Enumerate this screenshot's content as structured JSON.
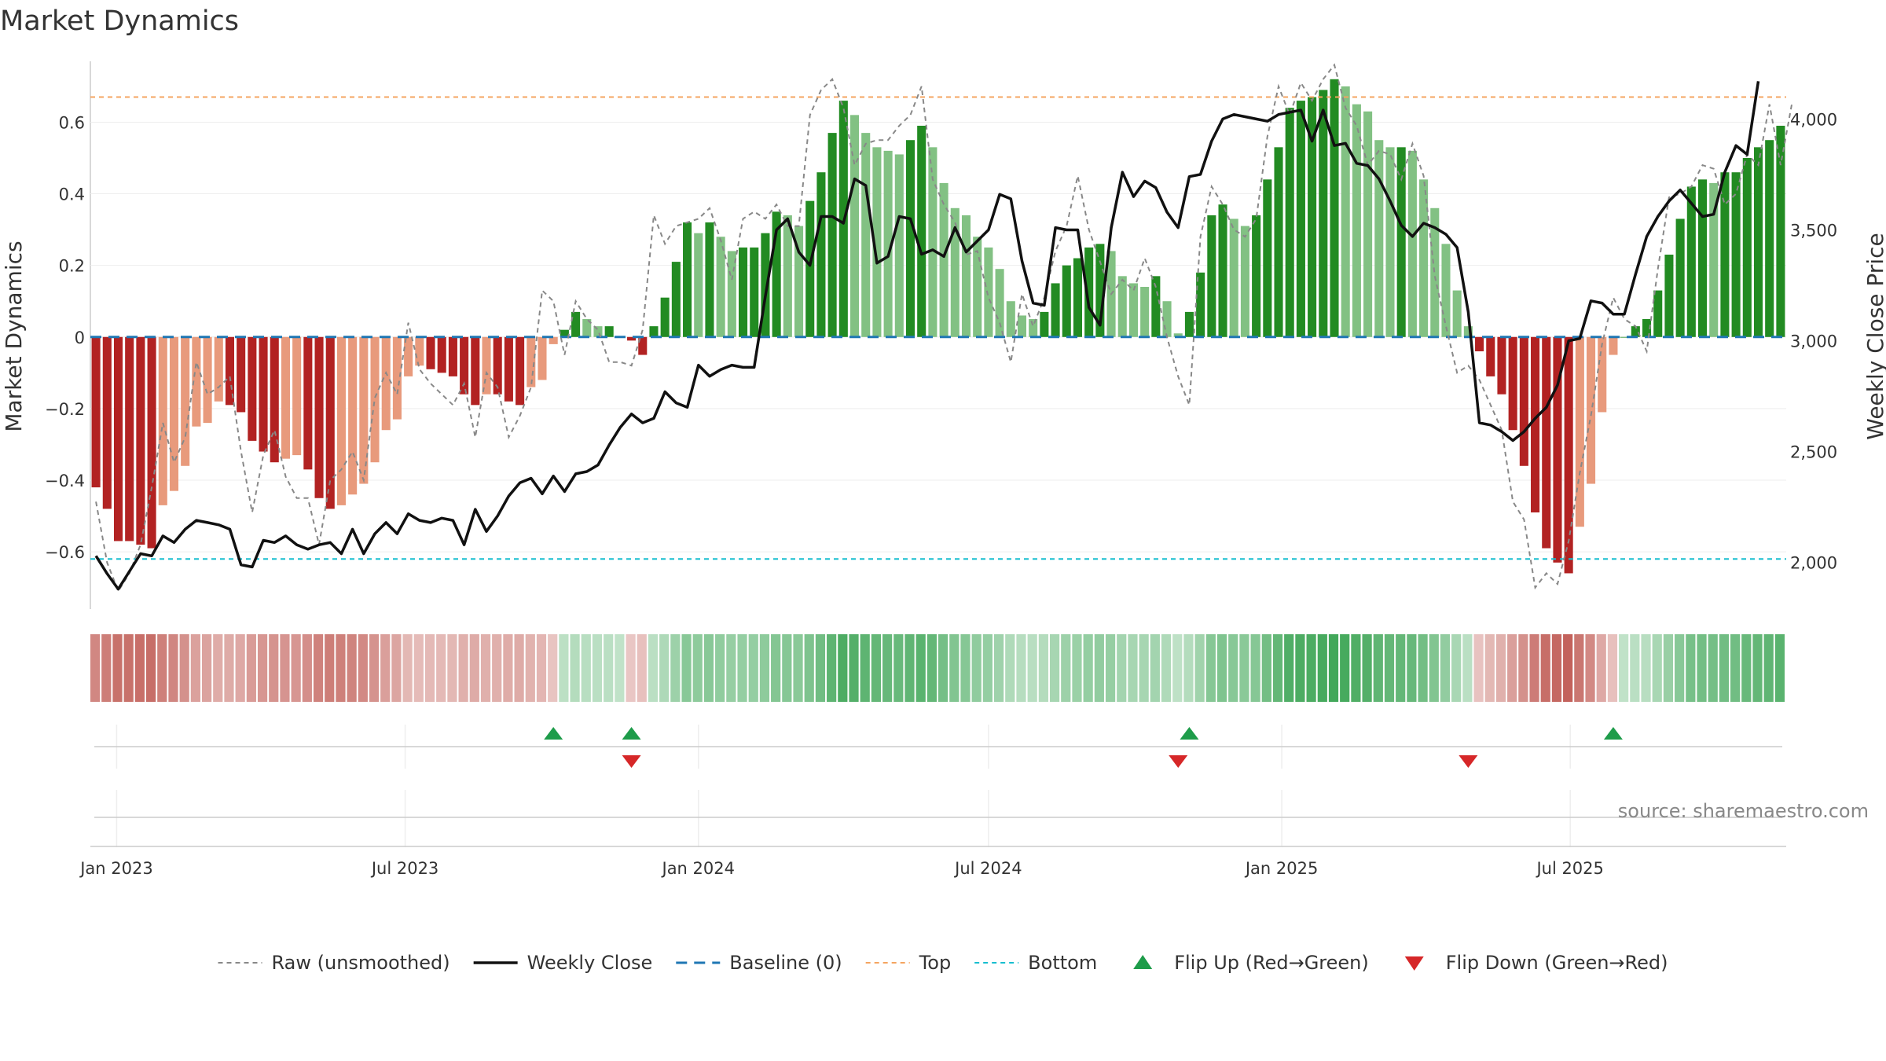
{
  "chart_data": {
    "type": "bar",
    "title": "Market Dynamics",
    "ylabel": "Market Dynamics",
    "y2label": "Weekly Close Price",
    "source": "source: sharemaestro.com",
    "ylim": [
      -0.76,
      0.77
    ],
    "y2lim": [
      1790,
      4260
    ],
    "start_date": "2022-12-19",
    "y_ticks": [
      {
        "v": 0.6,
        "label": "0.6"
      },
      {
        "v": 0.4,
        "label": "0.4"
      },
      {
        "v": 0.2,
        "label": "0.2"
      },
      {
        "v": 0,
        "label": "0"
      },
      {
        "v": -0.2,
        "label": "−0.2"
      },
      {
        "v": -0.4,
        "label": "−0.4"
      },
      {
        "v": -0.6,
        "label": "−0.6"
      }
    ],
    "y2_ticks": [
      {
        "v": 4000,
        "label": "4,000"
      },
      {
        "v": 3500,
        "label": "3,500"
      },
      {
        "v": 3000,
        "label": "3,000"
      },
      {
        "v": 2500,
        "label": "2,500"
      },
      {
        "v": 2000,
        "label": "2,000"
      }
    ],
    "x_ticks": [
      {
        "date": "2023-01-01",
        "label": "Jan 2023"
      },
      {
        "date": "2023-07-01",
        "label": "Jul 2023"
      },
      {
        "date": "2024-01-01",
        "label": "Jan 2024"
      },
      {
        "date": "2024-07-01",
        "label": "Jul 2024"
      },
      {
        "date": "2025-01-01",
        "label": "Jan 2025"
      },
      {
        "date": "2025-07-01",
        "label": "Jul 2025"
      }
    ],
    "top_line": 0.67,
    "bottom_line": -0.62,
    "grid": true,
    "legend_position": "bottom-center",
    "colors": {
      "strong_green": "#228b22",
      "light_green": "#82c183",
      "strong_red": "#b22222",
      "light_red": "#e89a7c",
      "price": "#111111",
      "raw": "#888888",
      "baseline": "#1f77b4",
      "top": "#f4a460",
      "bottom": "#17becf",
      "flip_up": "#1e9c4a",
      "flip_down": "#d62728"
    },
    "bars": [
      -0.42,
      -0.48,
      -0.57,
      -0.57,
      -0.58,
      -0.59,
      -0.47,
      -0.43,
      -0.36,
      -0.25,
      -0.24,
      -0.18,
      -0.19,
      -0.21,
      -0.29,
      -0.32,
      -0.35,
      -0.34,
      -0.33,
      -0.37,
      -0.45,
      -0.48,
      -0.47,
      -0.44,
      -0.41,
      -0.35,
      -0.26,
      -0.23,
      -0.11,
      -0.08,
      -0.09,
      -0.1,
      -0.11,
      -0.16,
      -0.19,
      -0.16,
      -0.16,
      -0.18,
      -0.19,
      -0.14,
      -0.12,
      -0.02,
      0.02,
      0.07,
      0.05,
      0.03,
      0.03,
      0.0,
      -0.01,
      -0.05,
      0.03,
      0.11,
      0.21,
      0.32,
      0.29,
      0.32,
      0.28,
      0.24,
      0.25,
      0.25,
      0.29,
      0.35,
      0.34,
      0.31,
      0.38,
      0.46,
      0.57,
      0.66,
      0.62,
      0.57,
      0.53,
      0.52,
      0.51,
      0.55,
      0.59,
      0.53,
      0.43,
      0.36,
      0.34,
      0.28,
      0.25,
      0.19,
      0.1,
      0.06,
      0.05,
      0.07,
      0.15,
      0.2,
      0.22,
      0.25,
      0.26,
      0.24,
      0.17,
      0.15,
      0.14,
      0.17,
      0.1,
      0.01,
      0.07,
      0.18,
      0.34,
      0.37,
      0.33,
      0.31,
      0.34,
      0.44,
      0.53,
      0.64,
      0.66,
      0.67,
      0.69,
      0.72,
      0.7,
      0.65,
      0.63,
      0.55,
      0.53,
      0.53,
      0.52,
      0.44,
      0.36,
      0.26,
      0.13,
      0.03,
      -0.04,
      -0.11,
      -0.16,
      -0.26,
      -0.36,
      -0.49,
      -0.59,
      -0.63,
      -0.66,
      -0.53,
      -0.41,
      -0.21,
      -0.05,
      0.0,
      0.03,
      0.05,
      0.13,
      0.23,
      0.33,
      0.42,
      0.44,
      0.43,
      0.46,
      0.46,
      0.5,
      0.53,
      0.55,
      0.59
    ],
    "raw": [
      -0.46,
      -0.63,
      -0.71,
      -0.66,
      -0.58,
      -0.42,
      -0.24,
      -0.35,
      -0.28,
      -0.07,
      -0.16,
      -0.14,
      -0.11,
      -0.32,
      -0.49,
      -0.33,
      -0.26,
      -0.39,
      -0.45,
      -0.45,
      -0.58,
      -0.4,
      -0.37,
      -0.32,
      -0.4,
      -0.17,
      -0.1,
      -0.16,
      0.04,
      -0.09,
      -0.13,
      -0.16,
      -0.19,
      -0.13,
      -0.28,
      -0.1,
      -0.14,
      -0.28,
      -0.22,
      -0.14,
      0.13,
      0.1,
      -0.05,
      0.1,
      0.05,
      0.02,
      -0.07,
      -0.07,
      -0.08,
      0.02,
      0.34,
      0.26,
      0.31,
      0.32,
      0.33,
      0.36,
      0.27,
      0.16,
      0.33,
      0.35,
      0.33,
      0.37,
      0.31,
      0.31,
      0.62,
      0.69,
      0.72,
      0.64,
      0.48,
      0.54,
      0.55,
      0.55,
      0.59,
      0.62,
      0.7,
      0.44,
      0.37,
      0.32,
      0.23,
      0.24,
      0.11,
      0.04,
      -0.07,
      0.12,
      0.03,
      0.11,
      0.24,
      0.31,
      0.45,
      0.3,
      0.21,
      0.12,
      0.16,
      0.13,
      0.22,
      0.14,
      0.0,
      -0.11,
      -0.19,
      0.28,
      0.42,
      0.37,
      0.3,
      0.28,
      0.33,
      0.56,
      0.7,
      0.62,
      0.71,
      0.66,
      0.72,
      0.76,
      0.64,
      0.59,
      0.48,
      0.52,
      0.51,
      0.44,
      0.54,
      0.45,
      0.17,
      0.03,
      -0.1,
      -0.08,
      -0.12,
      -0.19,
      -0.26,
      -0.46,
      -0.51,
      -0.7,
      -0.66,
      -0.69,
      -0.57,
      -0.38,
      -0.22,
      -0.02,
      0.11,
      0.05,
      0.03,
      -0.04,
      0.19,
      0.39,
      0.4,
      0.42,
      0.48,
      0.47,
      0.37,
      0.4,
      0.51,
      0.48,
      0.65,
      0.48,
      0.65
    ],
    "price": [
      2030,
      1950,
      1880,
      1960,
      2040,
      2030,
      2120,
      2090,
      2150,
      2190,
      2180,
      2170,
      2150,
      1990,
      1980,
      2100,
      2090,
      2120,
      2080,
      2060,
      2080,
      2090,
      2040,
      2150,
      2040,
      2130,
      2180,
      2130,
      2220,
      2190,
      2180,
      2200,
      2190,
      2080,
      2240,
      2140,
      2210,
      2300,
      2360,
      2380,
      2310,
      2390,
      2320,
      2400,
      2410,
      2440,
      2530,
      2610,
      2670,
      2630,
      2650,
      2770,
      2720,
      2700,
      2890,
      2840,
      2870,
      2890,
      2880,
      2880,
      3200,
      3500,
      3550,
      3400,
      3340,
      3560,
      3560,
      3530,
      3730,
      3700,
      3350,
      3380,
      3560,
      3550,
      3390,
      3410,
      3380,
      3510,
      3400,
      3450,
      3500,
      3660,
      3640,
      3360,
      3170,
      3160,
      3510,
      3500,
      3500,
      3150,
      3070,
      3510,
      3760,
      3650,
      3720,
      3690,
      3580,
      3510,
      3740,
      3750,
      3900,
      4000,
      4020,
      4010,
      4000,
      3990,
      4020,
      4030,
      4040,
      3900,
      4040,
      3880,
      3890,
      3800,
      3790,
      3730,
      3630,
      3520,
      3470,
      3530,
      3510,
      3480,
      3420,
      3130,
      2630,
      2620,
      2590,
      2550,
      2590,
      2650,
      2700,
      2800,
      3000,
      3010,
      3180,
      3170,
      3120,
      3120,
      3300,
      3470,
      3560,
      3630,
      3680,
      3620,
      3560,
      3570,
      3760,
      3880,
      3840,
      4170
    ],
    "flips": [
      {
        "week": 41,
        "dir": "up"
      },
      {
        "week": 48,
        "dir": "down"
      },
      {
        "week": 48,
        "dir": "up"
      },
      {
        "week": 97,
        "dir": "down"
      },
      {
        "week": 98,
        "dir": "up"
      },
      {
        "week": 123,
        "dir": "down"
      },
      {
        "week": 136,
        "dir": "up"
      }
    ]
  },
  "legend": [
    {
      "name": "legend-raw",
      "label": "Raw (unsmoothed)",
      "kind": "line",
      "color": "#888888",
      "dash": "6,5",
      "width": 2
    },
    {
      "name": "legend-weekly-close",
      "label": "Weekly Close",
      "kind": "line",
      "color": "#111111",
      "dash": "",
      "width": 3.5
    },
    {
      "name": "legend-baseline",
      "label": "Baseline (0)",
      "kind": "line",
      "color": "#1f77b4",
      "dash": "14,9",
      "width": 3
    },
    {
      "name": "legend-top",
      "label": "Top",
      "kind": "line",
      "color": "#f4a460",
      "dash": "6,5",
      "width": 2
    },
    {
      "name": "legend-bottom",
      "label": "Bottom",
      "kind": "line",
      "color": "#17becf",
      "dash": "6,5",
      "width": 2
    },
    {
      "name": "legend-flip-up",
      "label": "Flip Up (Red→Green)",
      "kind": "up",
      "color": "#1e9c4a"
    },
    {
      "name": "legend-flip-down",
      "label": "Flip Down (Green→Red)",
      "kind": "down",
      "color": "#d62728"
    }
  ]
}
